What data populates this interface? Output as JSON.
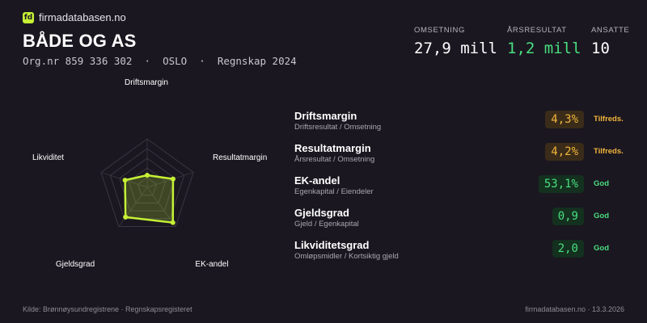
{
  "brand": {
    "logo_text": "fd",
    "name": "firmadatabasen.no"
  },
  "company": {
    "name": "BÅDE OG AS",
    "meta": "Org.nr 859 336 302  ·  OSLO  ·  Regnskap 2024"
  },
  "kpis": {
    "omsetning": {
      "label": "OMSETNING",
      "value": "27,9 mill"
    },
    "aarsresultat": {
      "label": "ÅRSRESULTAT",
      "value": "1,2 mill"
    },
    "ansatte": {
      "label": "ANSATTE",
      "value": "10"
    }
  },
  "radar": {
    "axes": [
      "Driftsmargin",
      "Resultatmargin",
      "EK-andel",
      "Gjeldsgrad",
      "Likviditet"
    ],
    "scores": [
      0.25,
      0.56,
      0.9,
      0.76,
      0.48
    ],
    "accent": "#c6f135"
  },
  "metrics": [
    {
      "name": "Driftsmargin",
      "sub": "Driftsresultat / Omsetning",
      "value": "4,3%",
      "status": "Tilfreds.",
      "level": "warn"
    },
    {
      "name": "Resultatmargin",
      "sub": "Årsresultat / Omsetning",
      "value": "4,2%",
      "status": "Tilfreds.",
      "level": "warn"
    },
    {
      "name": "EK-andel",
      "sub": "Egenkapital / Eiendeler",
      "value": "53,1%",
      "status": "God",
      "level": "good"
    },
    {
      "name": "Gjeldsgrad",
      "sub": "Gjeld / Egenkapital",
      "value": "0,9",
      "status": "God",
      "level": "good"
    },
    {
      "name": "Likviditetsgrad",
      "sub": "Omløpsmidler / Kortsiktig gjeld",
      "value": "2,0",
      "status": "God",
      "level": "good"
    }
  ],
  "footer": {
    "source": "Kilde: Brønnøysundregistrene · Regnskapsregisteret",
    "site": "firmadatabasen.no · 13.3.2026"
  },
  "colors": {
    "background": "#1a1720",
    "accent": "#c6f135",
    "good": "#4ade80",
    "warn": "#f3b53b"
  }
}
